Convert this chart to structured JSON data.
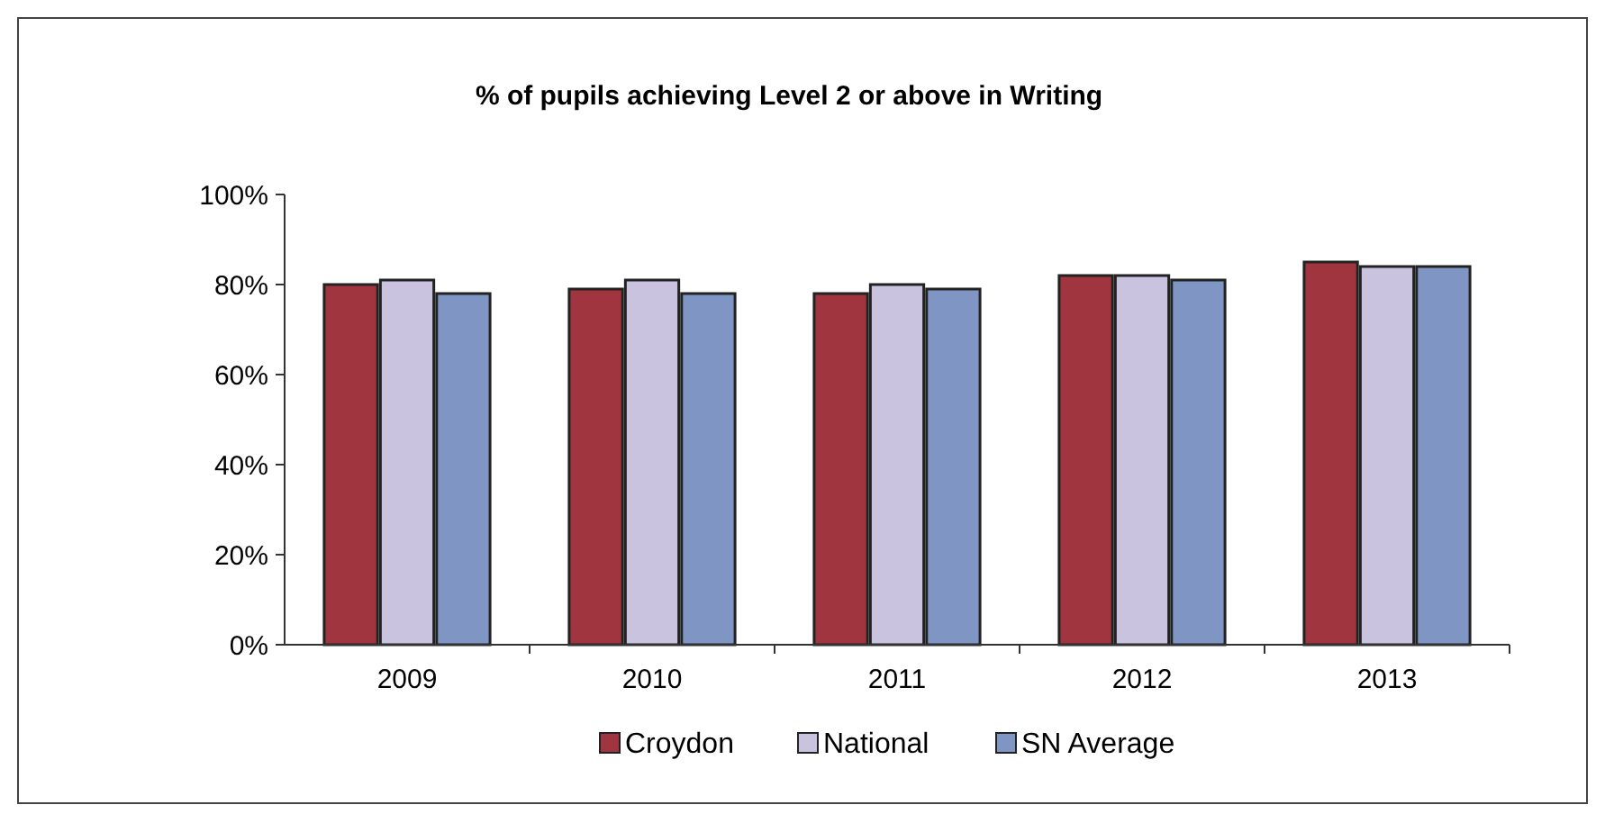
{
  "chart_data": {
    "type": "bar",
    "title": "% of pupils achieving Level 2 or above in Writing",
    "categories": [
      "2009",
      "2010",
      "2011",
      "2012",
      "2013"
    ],
    "series": [
      {
        "name": "Croydon",
        "color": "#a0353f",
        "values": [
          80,
          79,
          78,
          82,
          85
        ]
      },
      {
        "name": "National",
        "color": "#c9c3e0",
        "values": [
          81,
          81,
          80,
          82,
          84
        ]
      },
      {
        "name": "SN Average",
        "color": "#7f96c4",
        "values": [
          78,
          78,
          79,
          81,
          84
        ]
      }
    ],
    "ylim": [
      0,
      100
    ],
    "yticks": [
      {
        "value": 0,
        "label": "0%"
      },
      {
        "value": 20,
        "label": "20%"
      },
      {
        "value": 40,
        "label": "40%"
      },
      {
        "value": 60,
        "label": "60%"
      },
      {
        "value": 80,
        "label": "80%"
      },
      {
        "value": 100,
        "label": "100%"
      }
    ],
    "legend": "bottom"
  }
}
